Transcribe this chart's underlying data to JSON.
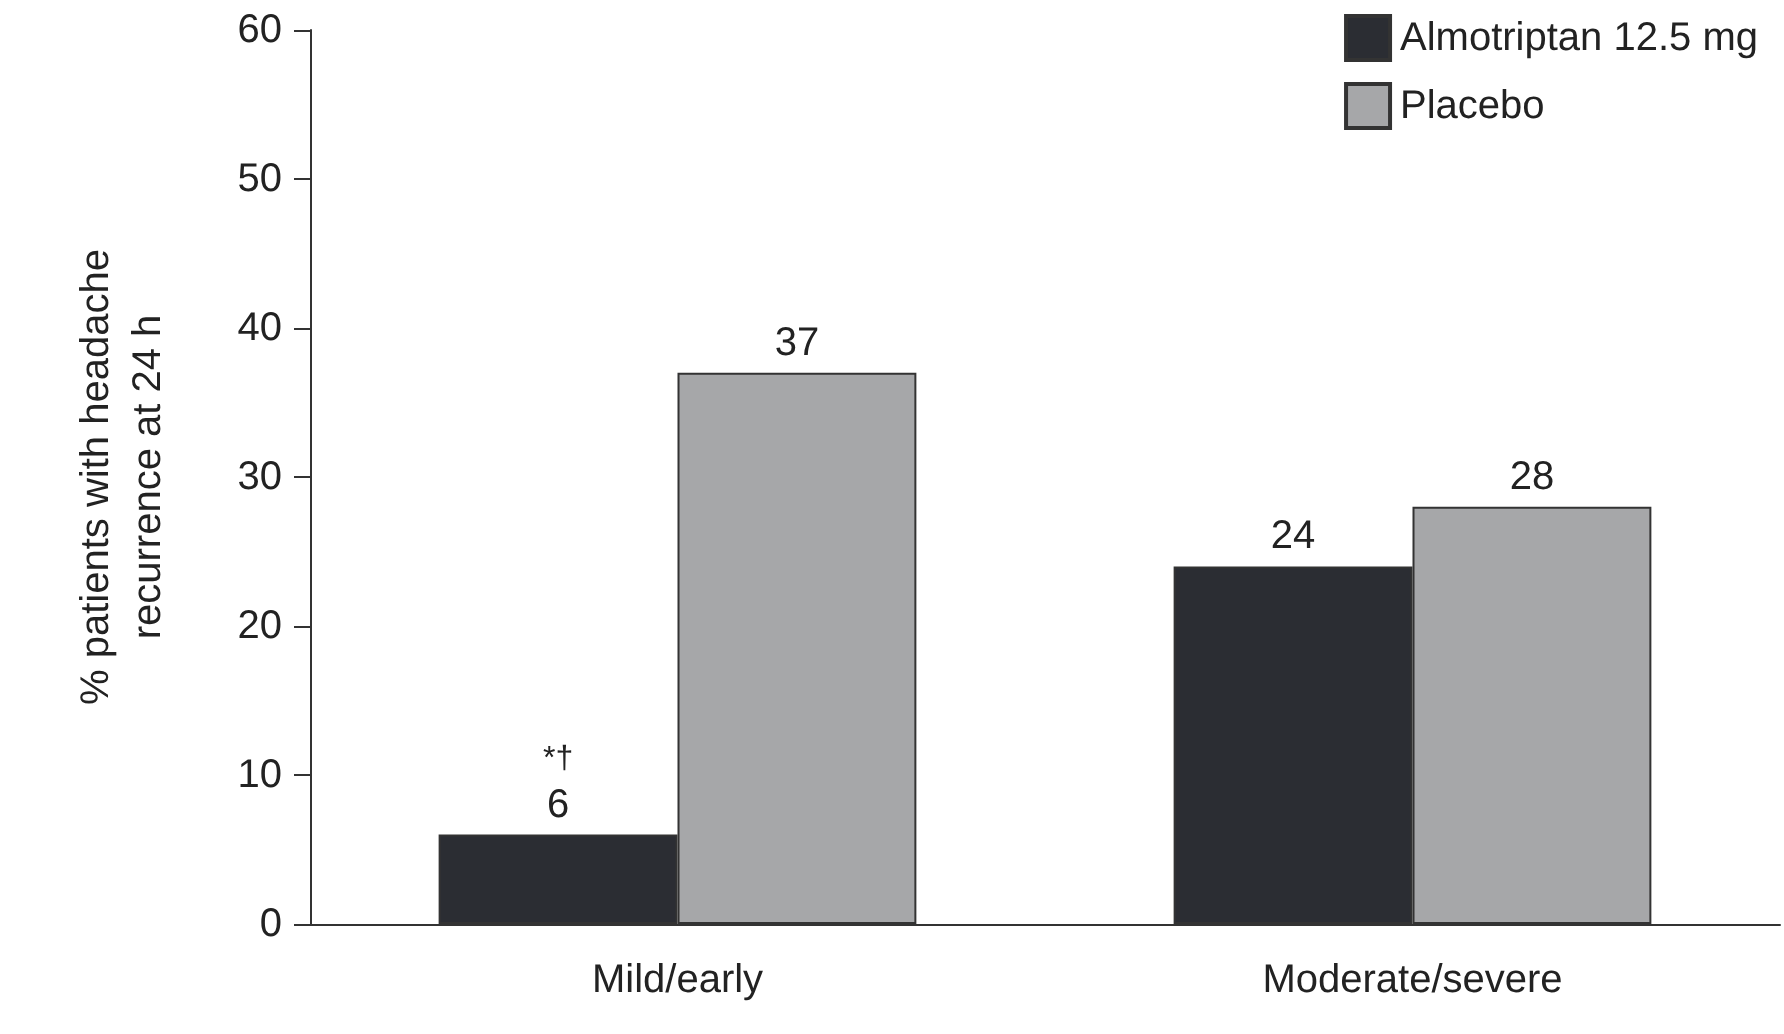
{
  "chart_data": {
    "type": "bar",
    "ylabel": "% patients with headache\nrecurrence at 24 h",
    "categories": [
      "Mild/early",
      "Moderate/severe"
    ],
    "series": [
      {
        "name": "Almotriptan 12.5 mg",
        "color": "#2b2d33",
        "values": [
          6,
          24
        ]
      },
      {
        "name": "Placebo",
        "color": "#a6a7a9",
        "values": [
          37,
          28
        ]
      }
    ],
    "ylim": [
      0,
      60
    ],
    "yticks": [
      0,
      10,
      20,
      30,
      40,
      50,
      60
    ],
    "data_labels": true,
    "legend": "top right",
    "grid": false,
    "annotations": [
      "*†"
    ]
  }
}
